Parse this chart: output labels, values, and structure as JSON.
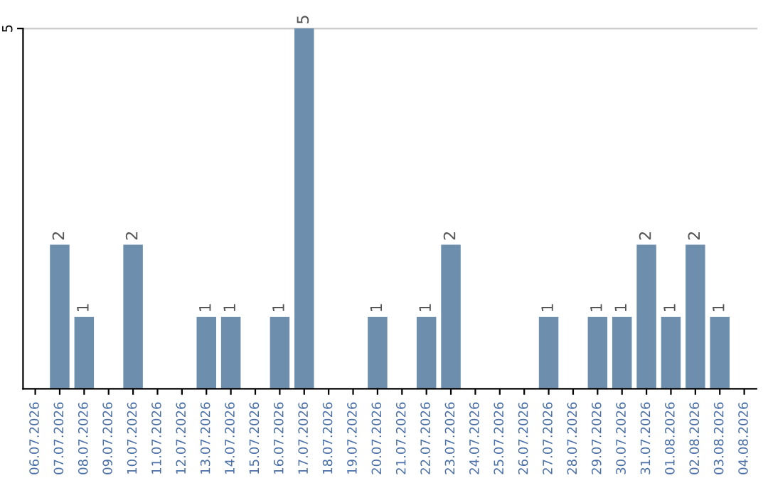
{
  "chart_data": {
    "type": "bar",
    "categories": [
      "06.07.2026",
      "07.07.2026",
      "08.07.2026",
      "09.07.2026",
      "10.07.2026",
      "11.07.2026",
      "12.07.2026",
      "13.07.2026",
      "14.07.2026",
      "15.07.2026",
      "16.07.2026",
      "17.07.2026",
      "18.07.2026",
      "19.07.2026",
      "20.07.2026",
      "21.07.2026",
      "22.07.2026",
      "23.07.2026",
      "24.07.2026",
      "25.07.2026",
      "26.07.2026",
      "27.07.2026",
      "28.07.2026",
      "29.07.2026",
      "30.07.2026",
      "31.07.2026",
      "01.08.2026",
      "02.08.2026",
      "03.08.2026",
      "04.08.2026"
    ],
    "values": [
      0,
      2,
      1,
      0,
      2,
      0,
      0,
      1,
      1,
      0,
      1,
      5,
      0,
      0,
      1,
      0,
      1,
      2,
      0,
      0,
      0,
      1,
      0,
      1,
      1,
      2,
      1,
      2,
      1,
      0
    ],
    "value_labels": [
      null,
      "2",
      "1",
      null,
      "2",
      null,
      null,
      "1",
      "1",
      null,
      "1",
      "5",
      null,
      null,
      "1",
      null,
      "1",
      "2",
      null,
      null,
      null,
      "1",
      null,
      "1",
      "1",
      "2",
      "1",
      "2",
      "1",
      null
    ],
    "color": "#6d8fad",
    "ylim": [
      0,
      5
    ],
    "yticks": [
      5
    ],
    "grid": "y"
  }
}
